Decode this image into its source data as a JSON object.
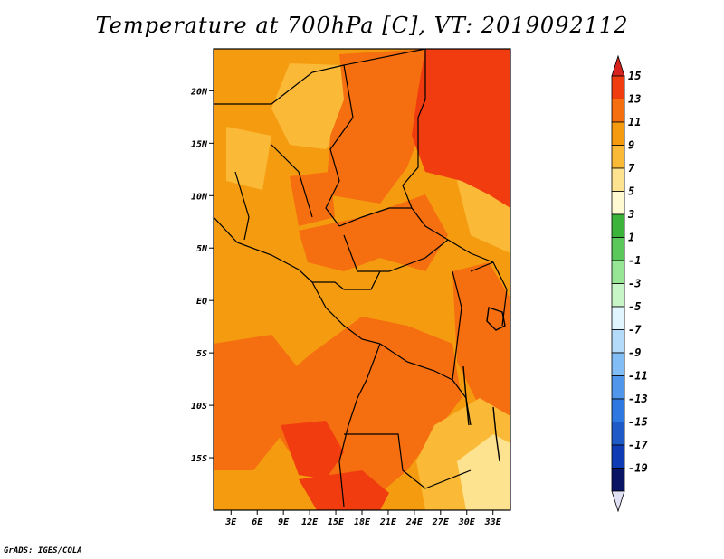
{
  "title": "Temperature at 700hPa [C], VT: 2019092112",
  "credit": "GrADS: IGES/COLA",
  "chart_data": {
    "type": "filled-contour map",
    "variable": "Temperature at 700hPa",
    "units": "C",
    "valid_time": "2019092112",
    "lon_range": [
      1,
      35
    ],
    "lat_range": [
      -20,
      24
    ],
    "x_ticks": [
      {
        "lon": 3,
        "label": "3E"
      },
      {
        "lon": 6,
        "label": "6E"
      },
      {
        "lon": 9,
        "label": "9E"
      },
      {
        "lon": 12,
        "label": "12E"
      },
      {
        "lon": 15,
        "label": "15E"
      },
      {
        "lon": 18,
        "label": "18E"
      },
      {
        "lon": 21,
        "label": "21E"
      },
      {
        "lon": 24,
        "label": "24E"
      },
      {
        "lon": 27,
        "label": "27E"
      },
      {
        "lon": 30,
        "label": "30E"
      },
      {
        "lon": 33,
        "label": "33E"
      }
    ],
    "y_ticks": [
      {
        "lat": 20,
        "label": "20N"
      },
      {
        "lat": 15,
        "label": "15N"
      },
      {
        "lat": 10,
        "label": "10N"
      },
      {
        "lat": 5,
        "label": "5N"
      },
      {
        "lat": 0,
        "label": "EQ"
      },
      {
        "lat": -5,
        "label": "5S"
      },
      {
        "lat": -10,
        "label": "10S"
      },
      {
        "lat": -15,
        "label": "15S"
      }
    ],
    "colorbar": {
      "labels": [
        "15",
        "13",
        "11",
        "9",
        "7",
        "5",
        "3",
        "1",
        "-1",
        "-3",
        "-5",
        "-7",
        "-9",
        "-11",
        "-13",
        "-15",
        "-17",
        "-19"
      ],
      "colors": [
        "#d7231e",
        "#f03c0f",
        "#f56e0f",
        "#f59b0f",
        "#fab937",
        "#fde38f",
        "#fffad2",
        "#3cb43c",
        "#5ac85a",
        "#96e696",
        "#c8f5c8",
        "#e1f5ff",
        "#b4dcfa",
        "#82bef5",
        "#5096eb",
        "#2d78e1",
        "#1e5ac8",
        "#0f3cb4",
        "#0a1464",
        "#e1e1f5"
      ]
    },
    "regions": [
      {
        "name": "base",
        "value_range": [
          9,
          11
        ],
        "color": "#f59b0f"
      },
      {
        "name": "sahara-east",
        "value_range": [
          13,
          15
        ],
        "color": "#f03c0f"
      },
      {
        "name": "sudan-chad",
        "value_range": [
          11,
          13
        ],
        "color": "#f56e0f"
      },
      {
        "name": "central-car",
        "value_range": [
          11,
          13
        ],
        "color": "#f56e0f"
      },
      {
        "name": "drc-south-angola",
        "value_range": [
          11,
          13
        ],
        "color": "#f56e0f"
      },
      {
        "name": "angola-core",
        "value_range": [
          13,
          15
        ],
        "color": "#f03c0f"
      },
      {
        "name": "zambia-mozambique",
        "value_range": [
          7,
          9
        ],
        "color": "#fab937"
      },
      {
        "name": "mozambique-coast",
        "value_range": [
          5,
          7
        ],
        "color": "#fde38f"
      }
    ]
  }
}
